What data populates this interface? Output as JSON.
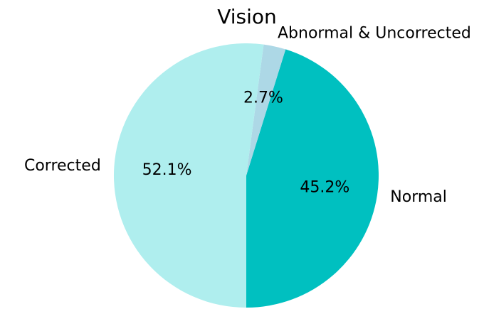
{
  "chart_data": {
    "type": "pie",
    "title": "Vision",
    "slices": [
      {
        "label": "Normal",
        "value": 45.2,
        "value_label": "45.2%",
        "color": "#00c0c0"
      },
      {
        "label": "Abnormal & Uncorrected",
        "value": 2.7,
        "value_label": "2.7%",
        "color": "#add8e6"
      },
      {
        "label": "Corrected",
        "value": 52.1,
        "value_label": "52.1%",
        "color": "#afeeee"
      }
    ],
    "legend": "none"
  }
}
